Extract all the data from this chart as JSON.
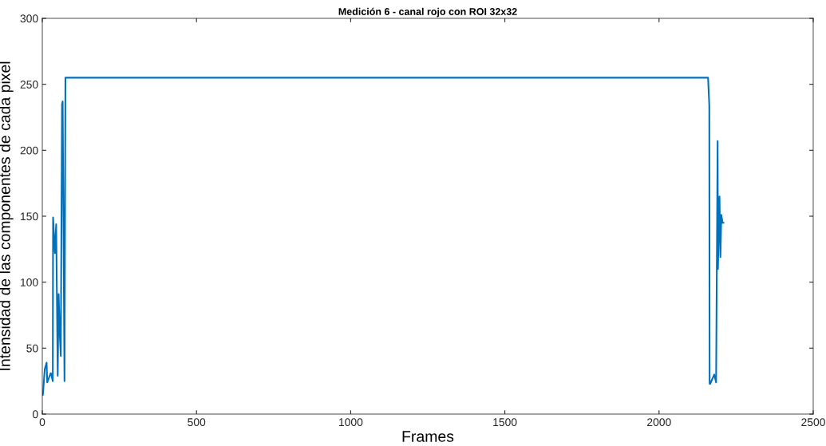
{
  "chart_data": {
    "type": "line",
    "title": "Medición 6 - canal rojo con ROI 32x32",
    "xlabel": "Frames",
    "ylabel": "Intensidad de las componentes de cada pixel",
    "x": [
      1,
      2,
      8,
      14,
      16,
      27,
      28,
      34,
      35,
      41,
      45,
      50,
      53,
      57,
      60,
      64,
      66,
      72,
      75,
      2159,
      2163,
      2164,
      2166,
      2179,
      2185,
      2190,
      2191,
      2196,
      2199,
      2202,
      2206,
      2209
    ],
    "series": [
      {
        "color": "#0072bd",
        "values": [
          14.5,
          14.5,
          34,
          39,
          24,
          31,
          31,
          25,
          149,
          122,
          144,
          29,
          91,
          59,
          44,
          235,
          237,
          25,
          255,
          255,
          234,
          23,
          23,
          30,
          24,
          207,
          110,
          165,
          119,
          151,
          145,
          145
        ]
      }
    ],
    "xlim": [
      0,
      2500
    ],
    "xticks": [
      0,
      500,
      1000,
      1500,
      2000,
      2500
    ],
    "ylim": [
      0,
      300
    ],
    "yticks": [
      0,
      50,
      100,
      150,
      200,
      250,
      300
    ],
    "grid": false,
    "legend": false
  }
}
